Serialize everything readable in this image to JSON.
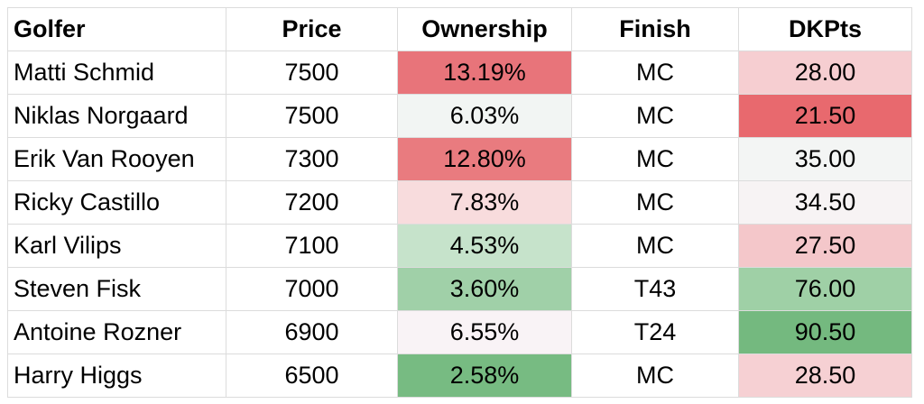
{
  "table": {
    "header": [
      "Golfer",
      "Price",
      "Ownership",
      "Finish",
      "DKPts"
    ],
    "rows": [
      [
        "Matti Schmid",
        "7500",
        "13.19%",
        "MC",
        "28.00"
      ],
      [
        "Niklas Norgaard",
        "7500",
        "6.03%",
        "MC",
        "21.50"
      ],
      [
        "Erik Van Rooyen",
        "7300",
        "12.80%",
        "MC",
        "35.00"
      ],
      [
        "Ricky Castillo",
        "7200",
        "7.83%",
        "MC",
        "34.50"
      ],
      [
        "Karl Vilips",
        "7100",
        "4.53%",
        "MC",
        "27.50"
      ],
      [
        "Steven Fisk",
        "7000",
        "3.60%",
        "T43",
        "76.00"
      ],
      [
        "Antoine Rozner",
        "6900",
        "6.55%",
        "T24",
        "90.50"
      ],
      [
        "Harry Higgs",
        "6500",
        "2.58%",
        "MC",
        "28.50"
      ]
    ],
    "ownership_colors": [
      "#e8747a",
      "#f2f5f3",
      "#e97b7f",
      "#f8dcdd",
      "#c6e3cb",
      "#a0d0a8",
      "#f9f3f6",
      "#77bb82"
    ],
    "dkpts_colors": [
      "#f6ced1",
      "#e8696e",
      "#f3f5f4",
      "#f7f3f4",
      "#f4c7ca",
      "#9fd0a6",
      "#74b97f",
      "#f6d0d3"
    ]
  }
}
